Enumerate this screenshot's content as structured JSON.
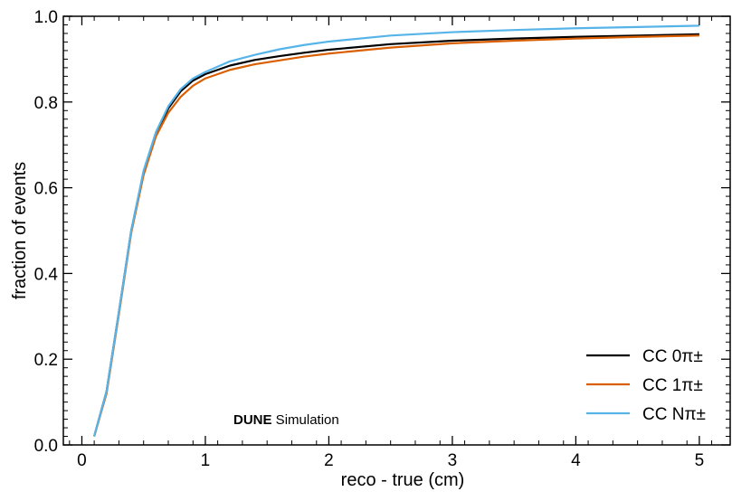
{
  "chart_data": {
    "type": "line",
    "xlabel": "reco - true (cm)",
    "ylabel": "fraction of events",
    "xlim": [
      -0.15,
      5.25
    ],
    "ylim": [
      0.0,
      1.0
    ],
    "xticks": [
      0,
      1,
      2,
      3,
      4,
      5
    ],
    "yticks": [
      0.0,
      0.2,
      0.4,
      0.6,
      0.8,
      1.0
    ],
    "xtick_labels": [
      "0",
      "1",
      "2",
      "3",
      "4",
      "5"
    ],
    "ytick_labels": [
      "0.0",
      "0.2",
      "0.4",
      "0.6",
      "0.8",
      "1.0"
    ],
    "grid": false,
    "legend_position": "bottom-right",
    "annotation": {
      "bold": "DUNE",
      "normal": " Simulation"
    },
    "x": [
      0.1,
      0.2,
      0.3,
      0.4,
      0.5,
      0.6,
      0.7,
      0.8,
      0.9,
      1.0,
      1.2,
      1.4,
      1.6,
      1.8,
      2.0,
      2.5,
      3.0,
      3.5,
      4.0,
      4.5,
      5.0
    ],
    "series": [
      {
        "name": "CC 0π±",
        "color": "#000000",
        "values": [
          0.02,
          0.125,
          0.31,
          0.5,
          0.635,
          0.725,
          0.785,
          0.825,
          0.85,
          0.865,
          0.885,
          0.898,
          0.907,
          0.915,
          0.922,
          0.935,
          0.943,
          0.948,
          0.952,
          0.955,
          0.958
        ]
      },
      {
        "name": "CC 1π±",
        "color": "#d95f02",
        "values": [
          0.02,
          0.12,
          0.305,
          0.495,
          0.63,
          0.72,
          0.775,
          0.812,
          0.838,
          0.855,
          0.875,
          0.888,
          0.897,
          0.906,
          0.913,
          0.927,
          0.937,
          0.943,
          0.948,
          0.952,
          0.955
        ]
      },
      {
        "name": "CC Nπ±",
        "color": "#56b4e9",
        "values": [
          0.02,
          0.125,
          0.31,
          0.5,
          0.64,
          0.73,
          0.79,
          0.83,
          0.855,
          0.87,
          0.895,
          0.91,
          0.923,
          0.933,
          0.941,
          0.955,
          0.963,
          0.968,
          0.972,
          0.975,
          0.978
        ]
      }
    ]
  }
}
